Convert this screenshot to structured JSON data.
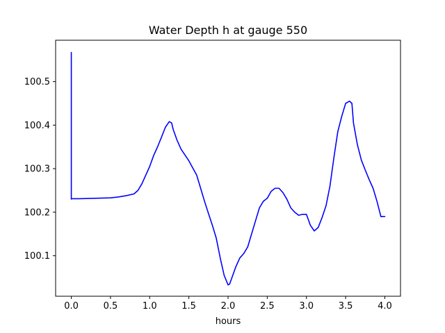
{
  "chart_data": {
    "type": "line",
    "title": "Water Depth h at gauge 550",
    "xlabel": "hours",
    "ylabel": "",
    "xlim": [
      -0.2,
      4.2
    ],
    "ylim": [
      100.007,
      100.595
    ],
    "xticks": [
      0.0,
      0.5,
      1.0,
      1.5,
      2.0,
      2.5,
      3.0,
      3.5,
      4.0
    ],
    "xtick_labels": [
      "0.0",
      "0.5",
      "1.0",
      "1.5",
      "2.0",
      "2.5",
      "3.0",
      "3.5",
      "4.0"
    ],
    "yticks": [
      100.1,
      100.2,
      100.3,
      100.4,
      100.5
    ],
    "ytick_labels": [
      "100.1",
      "100.2",
      "100.3",
      "100.4",
      "100.5"
    ],
    "grid": false,
    "legend": "none",
    "series": [
      {
        "color": "#0000ff",
        "x": [
          0.0,
          0.0,
          0.0,
          0.1,
          0.3,
          0.5,
          0.6,
          0.7,
          0.8,
          0.85,
          0.9,
          0.95,
          1.0,
          1.05,
          1.1,
          1.15,
          1.2,
          1.25,
          1.28,
          1.3,
          1.35,
          1.4,
          1.5,
          1.6,
          1.65,
          1.7,
          1.75,
          1.8,
          1.85,
          1.9,
          1.95,
          2.0,
          2.02,
          2.05,
          2.1,
          2.15,
          2.2,
          2.25,
          2.3,
          2.35,
          2.4,
          2.45,
          2.5,
          2.55,
          2.6,
          2.65,
          2.7,
          2.75,
          2.8,
          2.85,
          2.9,
          2.95,
          3.0,
          3.05,
          3.1,
          3.15,
          3.2,
          3.25,
          3.3,
          3.35,
          3.4,
          3.45,
          3.5,
          3.55,
          3.58,
          3.6,
          3.65,
          3.7,
          3.75,
          3.8,
          3.85,
          3.9,
          3.95,
          4.0
        ],
        "y": [
          100.567,
          100.23,
          100.231,
          100.231,
          100.232,
          100.233,
          100.235,
          100.238,
          100.242,
          100.25,
          100.265,
          100.285,
          100.305,
          100.33,
          100.35,
          100.372,
          100.395,
          100.408,
          100.405,
          100.39,
          100.365,
          100.345,
          100.318,
          100.285,
          100.255,
          100.225,
          100.197,
          100.17,
          100.14,
          100.095,
          100.055,
          100.033,
          100.035,
          100.05,
          100.075,
          100.095,
          100.105,
          100.12,
          100.15,
          100.18,
          100.21,
          100.225,
          100.232,
          100.248,
          100.255,
          100.255,
          100.245,
          100.23,
          100.21,
          100.2,
          100.193,
          100.195,
          100.195,
          100.17,
          100.157,
          100.165,
          100.188,
          100.215,
          100.26,
          100.325,
          100.385,
          100.42,
          100.45,
          100.455,
          100.45,
          100.405,
          100.355,
          100.32,
          100.297,
          100.275,
          100.255,
          100.225,
          100.19,
          100.19
        ]
      }
    ]
  }
}
